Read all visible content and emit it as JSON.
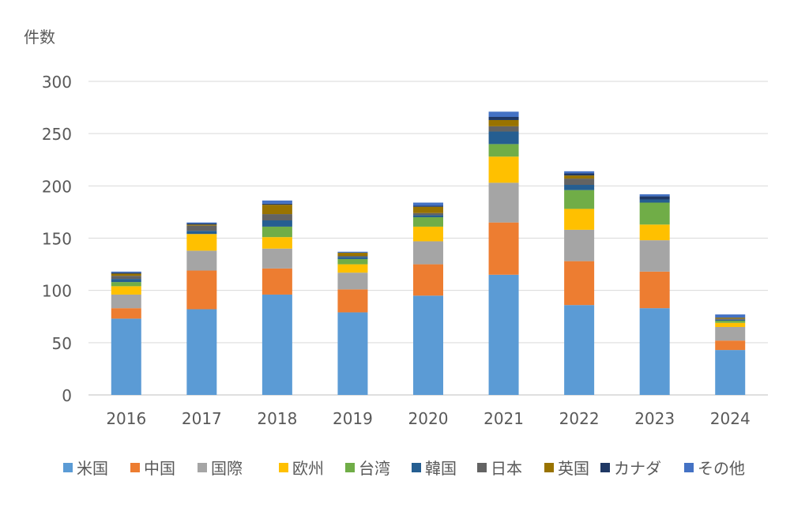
{
  "chart_data": {
    "type": "bar",
    "stacked": true,
    "title": "",
    "xlabel": "",
    "ylabel": "件数",
    "ylim": [
      0,
      300
    ],
    "yticks": [
      0,
      50,
      100,
      150,
      200,
      250,
      300
    ],
    "grid": true,
    "legend_position": "bottom",
    "categories": [
      "2016",
      "2017",
      "2018",
      "2019",
      "2020",
      "2021",
      "2022",
      "2023",
      "2024"
    ],
    "series": [
      {
        "name": "米国",
        "color": "#5B9BD5",
        "values": [
          73,
          82,
          96,
          79,
          95,
          115,
          86,
          83,
          43
        ]
      },
      {
        "name": "中国",
        "color": "#ED7D31",
        "values": [
          10,
          37,
          25,
          22,
          30,
          50,
          42,
          35,
          9
        ]
      },
      {
        "name": "国際",
        "color": "#A5A5A5",
        "values": [
          13,
          19,
          19,
          16,
          22,
          38,
          30,
          30,
          13
        ]
      },
      {
        "name": "欧州",
        "color": "#FFC000",
        "values": [
          8,
          16,
          11,
          8,
          14,
          25,
          20,
          15,
          4
        ]
      },
      {
        "name": "台湾",
        "color": "#70AD47",
        "values": [
          4,
          0,
          10,
          5,
          9,
          12,
          18,
          21,
          2
        ]
      },
      {
        "name": "韓国",
        "color": "#255E91",
        "values": [
          3,
          3,
          6,
          2,
          2,
          12,
          5,
          3,
          1
        ]
      },
      {
        "name": "日本",
        "color": "#636363",
        "values": [
          3,
          5,
          6,
          1,
          2,
          5,
          6,
          0,
          1
        ]
      },
      {
        "name": "英国",
        "color": "#997300",
        "values": [
          2,
          1,
          9,
          3,
          6,
          6,
          3,
          0,
          1
        ]
      },
      {
        "name": "カナダ",
        "color": "#1F3864",
        "values": [
          1,
          1,
          1,
          0,
          1,
          3,
          2,
          3,
          0
        ]
      },
      {
        "name": "その他",
        "color": "#4472C4",
        "values": [
          1,
          1,
          3,
          1,
          3,
          5,
          2,
          2,
          3
        ]
      }
    ]
  }
}
